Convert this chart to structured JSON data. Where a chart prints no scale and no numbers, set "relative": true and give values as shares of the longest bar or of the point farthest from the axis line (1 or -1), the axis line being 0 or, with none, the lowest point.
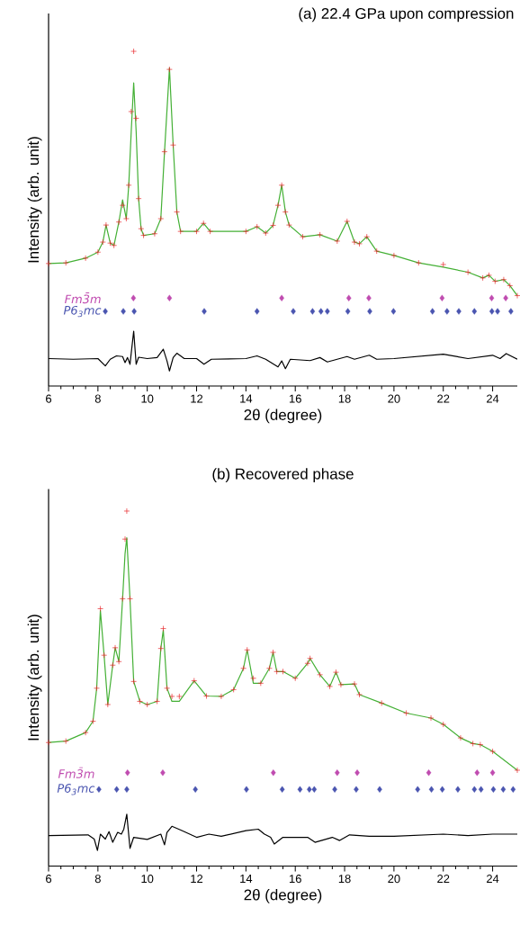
{
  "chart_data": [
    {
      "type": "line",
      "title": "(a) 22.4 GPa upon compression",
      "xlabel": "2θ (degree)",
      "ylabel": "Intensity (arb. unit)",
      "relative": true,
      "xlim": [
        6,
        25
      ],
      "xticks": [
        6,
        8,
        10,
        12,
        14,
        16,
        18,
        20,
        22,
        24
      ],
      "series": [
        {
          "type": "scatter",
          "marker": "cross",
          "color": "#e8262a",
          "x": [
            6.0,
            6.7,
            7.5,
            8.0,
            8.2,
            8.33,
            8.5,
            8.65,
            8.85,
            9.0,
            9.15,
            9.25,
            9.35,
            9.45,
            9.55,
            9.65,
            9.75,
            9.85,
            10.3,
            10.55,
            10.7,
            10.9,
            11.05,
            11.2,
            11.35,
            12.0,
            12.28,
            12.55,
            14.0,
            14.45,
            14.8,
            15.1,
            15.3,
            15.45,
            15.6,
            15.75,
            16.3,
            17.0,
            17.7,
            18.1,
            18.4,
            18.6,
            18.9,
            19.3,
            20.0,
            21.0,
            22.0,
            23.0,
            23.6,
            23.85,
            24.1,
            24.45,
            24.7,
            25.0
          ],
          "values": [
            0.366,
            0.368,
            0.382,
            0.4,
            0.43,
            0.481,
            0.427,
            0.42,
            0.49,
            0.54,
            0.5,
            0.6,
            0.82,
            1.0,
            0.8,
            0.56,
            0.47,
            0.45,
            0.455,
            0.5,
            0.7,
            0.946,
            0.72,
            0.52,
            0.462,
            0.462,
            0.486,
            0.462,
            0.462,
            0.476,
            0.457,
            0.48,
            0.54,
            0.6,
            0.52,
            0.481,
            0.446,
            0.452,
            0.433,
            0.492,
            0.43,
            0.425,
            0.446,
            0.403,
            0.39,
            0.368,
            0.363,
            0.34,
            0.323,
            0.331,
            0.313,
            0.318,
            0.3,
            0.27
          ]
        },
        {
          "color": "#44b035",
          "x": [
            6.0,
            6.7,
            7.5,
            8.0,
            8.2,
            8.33,
            8.5,
            8.65,
            8.85,
            9.0,
            9.15,
            9.25,
            9.35,
            9.45,
            9.55,
            9.65,
            9.75,
            9.85,
            10.3,
            10.55,
            10.7,
            10.9,
            11.05,
            11.2,
            11.35,
            12.0,
            12.28,
            12.55,
            14.0,
            14.45,
            14.8,
            15.1,
            15.3,
            15.45,
            15.6,
            15.75,
            16.3,
            17.0,
            17.7,
            18.1,
            18.4,
            18.6,
            18.9,
            19.3,
            20.0,
            21.0,
            22.0,
            23.0,
            23.6,
            23.85,
            24.1,
            24.45,
            24.7,
            25.0
          ],
          "values": [
            0.366,
            0.368,
            0.382,
            0.4,
            0.43,
            0.481,
            0.427,
            0.42,
            0.49,
            0.556,
            0.5,
            0.6,
            0.76,
            0.906,
            0.76,
            0.56,
            0.47,
            0.45,
            0.455,
            0.5,
            0.7,
            0.95,
            0.72,
            0.52,
            0.462,
            0.462,
            0.486,
            0.462,
            0.462,
            0.476,
            0.457,
            0.48,
            0.54,
            0.6,
            0.52,
            0.481,
            0.446,
            0.452,
            0.433,
            0.492,
            0.43,
            0.425,
            0.446,
            0.403,
            0.39,
            0.368,
            0.355,
            0.34,
            0.323,
            0.331,
            0.313,
            0.318,
            0.3,
            0.27
          ]
        },
        {
          "color": "#000000",
          "x": [
            6.0,
            7.0,
            8.0,
            8.3,
            8.5,
            8.75,
            9.0,
            9.1,
            9.2,
            9.3,
            9.45,
            9.55,
            9.65,
            10.0,
            10.4,
            10.65,
            10.8,
            10.9,
            11.05,
            11.2,
            11.5,
            12.0,
            12.3,
            12.6,
            14.0,
            14.45,
            14.8,
            15.3,
            15.45,
            15.6,
            15.8,
            16.6,
            17.0,
            17.3,
            18.1,
            18.4,
            19.0,
            19.3,
            20.0,
            22.0,
            23.0,
            24.0,
            24.3,
            24.55,
            25.0
          ],
          "values": [
            0.082,
            0.08,
            0.082,
            0.06,
            0.08,
            0.09,
            0.088,
            0.07,
            0.085,
            0.065,
            0.164,
            0.065,
            0.086,
            0.082,
            0.085,
            0.11,
            0.075,
            0.045,
            0.085,
            0.098,
            0.082,
            0.082,
            0.065,
            0.08,
            0.082,
            0.09,
            0.08,
            0.057,
            0.075,
            0.052,
            0.08,
            0.076,
            0.085,
            0.072,
            0.088,
            0.08,
            0.092,
            0.08,
            0.082,
            0.095,
            0.082,
            0.092,
            0.082,
            0.097,
            0.08
          ]
        },
        {
          "type": "scatter",
          "marker": "diamond",
          "name": "Fm3̄m",
          "color": "#c04cb0",
          "x": [
            9.44,
            10.9,
            15.45,
            18.17,
            18.98,
            21.95,
            23.96,
            24.53
          ],
          "values": [
            0.263,
            0.263,
            0.263,
            0.263,
            0.263,
            0.263,
            0.263,
            0.263
          ]
        },
        {
          "type": "scatter",
          "marker": "diamond",
          "name": "P6$_{3}$mc",
          "color": "#4a55b0",
          "x": [
            8.3,
            9.03,
            9.47,
            12.31,
            14.45,
            15.92,
            16.7,
            17.04,
            17.3,
            18.13,
            19.02,
            19.98,
            21.56,
            22.15,
            22.63,
            23.26,
            23.97,
            24.2,
            24.74
          ],
          "values": [
            0.223,
            0.223,
            0.223,
            0.223,
            0.223,
            0.223,
            0.223,
            0.223,
            0.223,
            0.223,
            0.223,
            0.223,
            0.223,
            0.223,
            0.223,
            0.223,
            0.223,
            0.223,
            0.223
          ]
        }
      ]
    },
    {
      "type": "line",
      "title": "(b) Recovered phase",
      "xlabel": "2θ (degree)",
      "ylabel": "Intensity (arb. unit)",
      "relative": true,
      "xlim": [
        6,
        25
      ],
      "xticks": [
        6,
        8,
        10,
        12,
        14,
        16,
        18,
        20,
        22,
        24
      ],
      "series": [
        {
          "type": "scatter",
          "marker": "cross",
          "color": "#e8262a",
          "x": [
            6.0,
            6.7,
            7.5,
            7.8,
            7.95,
            8.1,
            8.25,
            8.4,
            8.6,
            8.7,
            8.85,
            9.0,
            9.1,
            9.17,
            9.3,
            9.45,
            9.7,
            10.0,
            10.4,
            10.55,
            10.65,
            10.8,
            11.0,
            11.3,
            11.9,
            12.4,
            13.0,
            13.5,
            13.9,
            14.05,
            14.3,
            14.6,
            14.95,
            15.1,
            15.25,
            15.5,
            16.0,
            16.5,
            16.6,
            17.0,
            17.4,
            17.65,
            17.85,
            18.4,
            18.6,
            19.5,
            20.5,
            21.5,
            22.0,
            22.7,
            23.2,
            23.5,
            24.0,
            25.0
          ],
          "values": [
            0.348,
            0.352,
            0.376,
            0.408,
            0.501,
            0.725,
            0.594,
            0.455,
            0.566,
            0.615,
            0.576,
            0.753,
            0.921,
            1.0,
            0.753,
            0.52,
            0.464,
            0.455,
            0.464,
            0.613,
            0.669,
            0.501,
            0.478,
            0.478,
            0.522,
            0.479,
            0.478,
            0.497,
            0.557,
            0.609,
            0.529,
            0.515,
            0.557,
            0.602,
            0.548,
            0.548,
            0.529,
            0.571,
            0.585,
            0.539,
            0.506,
            0.546,
            0.511,
            0.513,
            0.483,
            0.459,
            0.431,
            0.417,
            0.399,
            0.361,
            0.345,
            0.342,
            0.323,
            0.27
          ]
        },
        {
          "color": "#44b035",
          "x": [
            6.0,
            6.7,
            7.5,
            7.8,
            7.95,
            8.1,
            8.25,
            8.4,
            8.6,
            8.7,
            8.85,
            9.0,
            9.1,
            9.17,
            9.3,
            9.45,
            9.7,
            10.0,
            10.4,
            10.55,
            10.65,
            10.8,
            11.0,
            11.3,
            11.9,
            12.4,
            13.0,
            13.5,
            13.9,
            14.05,
            14.3,
            14.6,
            14.95,
            15.1,
            15.25,
            15.5,
            16.0,
            16.5,
            16.6,
            17.0,
            17.4,
            17.65,
            17.85,
            18.4,
            18.6,
            19.5,
            20.5,
            21.5,
            22.0,
            22.7,
            23.2,
            23.5,
            24.0,
            25.0
          ],
          "values": [
            0.348,
            0.352,
            0.376,
            0.408,
            0.501,
            0.72,
            0.594,
            0.455,
            0.566,
            0.615,
            0.576,
            0.753,
            0.88,
            0.925,
            0.753,
            0.52,
            0.464,
            0.455,
            0.464,
            0.613,
            0.665,
            0.501,
            0.464,
            0.464,
            0.522,
            0.479,
            0.478,
            0.497,
            0.557,
            0.609,
            0.515,
            0.515,
            0.557,
            0.602,
            0.548,
            0.548,
            0.529,
            0.571,
            0.585,
            0.539,
            0.506,
            0.546,
            0.511,
            0.513,
            0.483,
            0.459,
            0.431,
            0.417,
            0.399,
            0.361,
            0.345,
            0.342,
            0.323,
            0.27
          ]
        },
        {
          "color": "#000000",
          "x": [
            6.0,
            7.6,
            7.85,
            7.98,
            8.1,
            8.3,
            8.45,
            8.6,
            8.8,
            8.95,
            9.05,
            9.17,
            9.3,
            9.45,
            10.0,
            10.55,
            10.7,
            10.8,
            11.0,
            11.4,
            12.0,
            12.5,
            13.0,
            14.0,
            14.5,
            14.75,
            15.0,
            15.15,
            15.5,
            16.5,
            16.8,
            17.5,
            17.8,
            18.2,
            19.0,
            20.0,
            22.0,
            23.0,
            24.0,
            25.0
          ],
          "values": [
            0.086,
            0.088,
            0.076,
            0.044,
            0.09,
            0.076,
            0.097,
            0.067,
            0.095,
            0.09,
            0.104,
            0.146,
            0.05,
            0.081,
            0.075,
            0.09,
            0.06,
            0.095,
            0.112,
            0.1,
            0.081,
            0.09,
            0.084,
            0.1,
            0.104,
            0.09,
            0.081,
            0.062,
            0.081,
            0.081,
            0.067,
            0.081,
            0.072,
            0.088,
            0.084,
            0.084,
            0.09,
            0.086,
            0.09,
            0.09
          ]
        },
        {
          "type": "scatter",
          "marker": "diamond",
          "name": "Fm3̄m",
          "color": "#c04cb0",
          "x": [
            9.2,
            10.63,
            15.11,
            17.7,
            18.51,
            21.41,
            23.37,
            24.0
          ],
          "values": [
            0.263,
            0.263,
            0.263,
            0.263,
            0.263,
            0.263,
            0.263,
            0.263
          ]
        },
        {
          "type": "scatter",
          "marker": "diamond",
          "name": "P6$_{3}$mc",
          "color": "#4a55b0",
          "x": [
            8.04,
            8.76,
            9.17,
            11.95,
            14.02,
            15.47,
            16.19,
            16.57,
            16.77,
            17.6,
            18.47,
            19.42,
            20.96,
            21.52,
            21.96,
            22.59,
            23.26,
            23.53,
            24.03,
            24.43,
            24.83
          ],
          "values": [
            0.216,
            0.216,
            0.216,
            0.216,
            0.216,
            0.216,
            0.216,
            0.216,
            0.216,
            0.216,
            0.216,
            0.216,
            0.216,
            0.216,
            0.216,
            0.216,
            0.216,
            0.216,
            0.216,
            0.216,
            0.216
          ]
        }
      ]
    }
  ]
}
